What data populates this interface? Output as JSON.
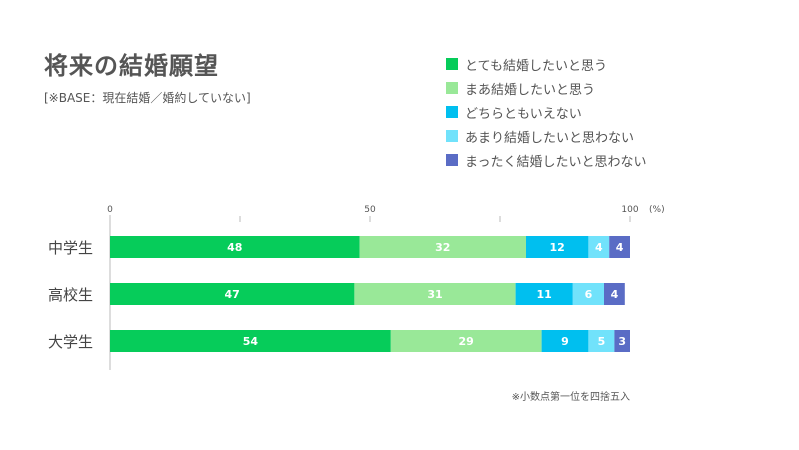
{
  "title": "将来の結婚願望",
  "subtitle": "[※BASE：現在結婚／婚約していない]",
  "note": "※小数点第一位を四捨五入",
  "legend": [
    {
      "label": "とても結婚したいと思う",
      "color": "#06cc5a"
    },
    {
      "label": "まあ結婚したいと思う",
      "color": "#99e898"
    },
    {
      "label": "どちらともいえない",
      "color": "#00bfef"
    },
    {
      "label": "あまり結婚したいと思わない",
      "color": "#71e2fb"
    },
    {
      "label": "まったく結婚したいと思わない",
      "color": "#5a6cc5"
    }
  ],
  "chart_data": {
    "type": "bar",
    "orientation": "horizontal",
    "stacked": true,
    "title": "将来の結婚願望",
    "subtitle": "[※BASE：現在結婚／婚約していない]",
    "categories": [
      "中学生",
      "高校生",
      "大学生"
    ],
    "series": [
      {
        "name": "とても結婚したいと思う",
        "values": [
          48,
          47,
          54
        ],
        "color": "#06cc5a"
      },
      {
        "name": "まあ結婚したいと思う",
        "values": [
          32,
          31,
          29
        ],
        "color": "#99e898"
      },
      {
        "name": "どちらともいえない",
        "values": [
          12,
          11,
          9
        ],
        "color": "#00bfef"
      },
      {
        "name": "あまり結婚したいと思わない",
        "values": [
          4,
          6,
          5
        ],
        "color": "#71e2fb"
      },
      {
        "name": "まったく結婚したいと思わない",
        "values": [
          4,
          4,
          3
        ],
        "color": "#5a6cc5"
      }
    ],
    "xlim": [
      0,
      100
    ],
    "xticks": [
      0,
      50,
      100
    ],
    "xunit": "(%)",
    "legend_position": "top-right",
    "grid": false
  }
}
